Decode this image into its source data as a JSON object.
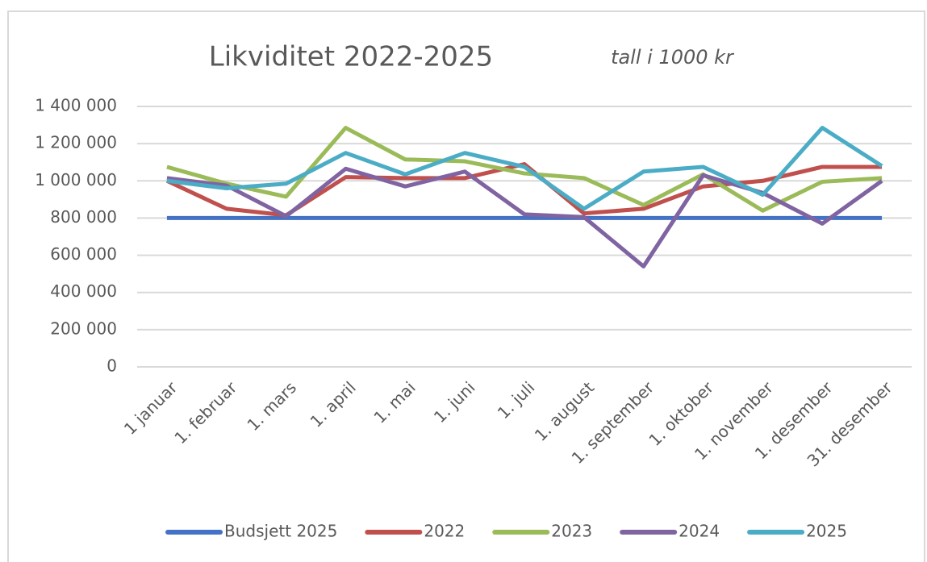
{
  "chart_data": {
    "type": "line",
    "title": "Likviditet 2022-2025",
    "subtitle": "tall i 1000 kr",
    "categories": [
      "1 januar",
      "1. februar",
      "1. mars",
      "1. april",
      "1. mai",
      "1. juni",
      "1. juli",
      "1. august",
      "1. september",
      "1. oktober",
      "1. november",
      "1. desember",
      "31. desember"
    ],
    "series": [
      {
        "name": "Budsjett 2025",
        "color": "#4472c4",
        "values": [
          800000,
          800000,
          800000,
          800000,
          800000,
          800000,
          800000,
          800000,
          800000,
          800000,
          800000,
          800000,
          800000
        ]
      },
      {
        "name": "2022",
        "color": "#c0504d",
        "values": [
          1000000,
          850000,
          815000,
          1020000,
          1015000,
          1015000,
          1090000,
          825000,
          850000,
          970000,
          1000000,
          1075000,
          1075000
        ]
      },
      {
        "name": "2023",
        "color": "#9bbb59",
        "values": [
          1075000,
          985000,
          915000,
          1285000,
          1115000,
          1105000,
          1040000,
          1015000,
          870000,
          1035000,
          840000,
          995000,
          1015000
        ]
      },
      {
        "name": "2024",
        "color": "#8064a2",
        "values": [
          1015000,
          975000,
          810000,
          1065000,
          970000,
          1050000,
          820000,
          805000,
          540000,
          1030000,
          935000,
          770000,
          1000000
        ]
      },
      {
        "name": "2025",
        "color": "#4bacc6",
        "values": [
          1000000,
          960000,
          985000,
          1150000,
          1035000,
          1150000,
          1075000,
          850000,
          1050000,
          1075000,
          925000,
          1285000,
          1080000
        ]
      }
    ],
    "ylim": [
      0,
      1400000
    ],
    "yticks": [
      0,
      {
        "value": 200000,
        "label": "200 000"
      },
      {
        "value": 400000,
        "label": "400 000"
      },
      {
        "value": 600000,
        "label": "600 000"
      },
      {
        "value": 800000,
        "label": "800 000"
      },
      {
        "value": 1000000,
        "label": "1 000 000"
      },
      {
        "value": 1200000,
        "label": "1 200 000"
      },
      {
        "value": 1400000,
        "label": "1 400 000"
      }
    ],
    "grid": true,
    "legend": "bottom"
  }
}
